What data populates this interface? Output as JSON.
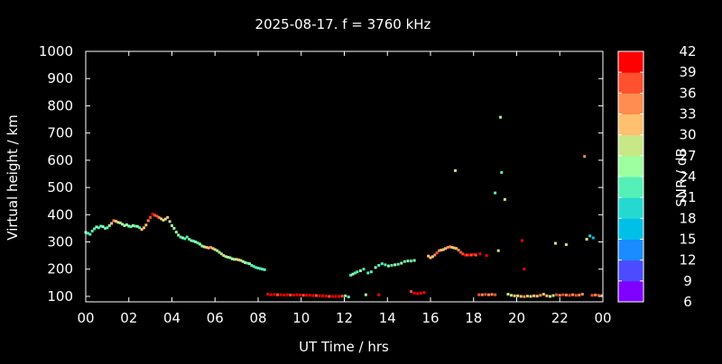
{
  "chart_data": {
    "type": "scatter",
    "title": "2025-08-17. f = 3760 kHz",
    "xlabel": "UT Time / hrs",
    "ylabel": "Virtual height / km",
    "xlim": [
      0,
      24
    ],
    "ylim": [
      80,
      1000
    ],
    "x_ticks": [
      "00",
      "02",
      "04",
      "06",
      "08",
      "10",
      "12",
      "14",
      "16",
      "18",
      "20",
      "22",
      "00"
    ],
    "y_ticks": [
      "100",
      "200",
      "300",
      "400",
      "500",
      "600",
      "700",
      "800",
      "900",
      "1000"
    ],
    "colorbar": {
      "label": "SNR / dB",
      "min": 6,
      "max": 42,
      "ticks": [
        "42",
        "39",
        "36",
        "33",
        "30",
        "27",
        "24",
        "21",
        "18",
        "15",
        "12",
        "9",
        "6"
      ],
      "colors": [
        "#8000ff",
        "#4b4bff",
        "#1a8cff",
        "#00c0e8",
        "#26d9d0",
        "#55f0b8",
        "#9dffa0",
        "#c8e888",
        "#ffc070",
        "#ff8c50",
        "#ff5030",
        "#ff0000"
      ]
    },
    "background": "#000000",
    "grid": false,
    "series": [
      {
        "points": [
          [
            0.0,
            335,
            24
          ],
          [
            0.1,
            332,
            23
          ],
          [
            0.2,
            328,
            22
          ],
          [
            0.3,
            340,
            23
          ],
          [
            0.4,
            348,
            22
          ],
          [
            0.5,
            355,
            24
          ],
          [
            0.6,
            352,
            23
          ],
          [
            0.7,
            358,
            22
          ],
          [
            0.8,
            356,
            24
          ],
          [
            0.9,
            350,
            23
          ],
          [
            1.0,
            352,
            22
          ],
          [
            1.1,
            360,
            24
          ],
          [
            1.2,
            368,
            30
          ],
          [
            1.3,
            378,
            33
          ],
          [
            1.4,
            376,
            30
          ],
          [
            1.5,
            372,
            27
          ],
          [
            1.6,
            370,
            28
          ],
          [
            1.7,
            365,
            25
          ],
          [
            1.8,
            360,
            24
          ],
          [
            1.9,
            363,
            26
          ],
          [
            2.0,
            358,
            24
          ],
          [
            2.1,
            356,
            23
          ],
          [
            2.2,
            360,
            24
          ],
          [
            2.3,
            358,
            23
          ],
          [
            2.4,
            357,
            24
          ],
          [
            2.5,
            352,
            23
          ],
          [
            2.6,
            346,
            30
          ],
          [
            2.7,
            352,
            31
          ],
          [
            2.8,
            362,
            30
          ],
          [
            2.9,
            378,
            33
          ],
          [
            3.0,
            390,
            36
          ],
          [
            3.1,
            402,
            39
          ],
          [
            3.2,
            398,
            38
          ],
          [
            3.3,
            395,
            36
          ],
          [
            3.4,
            390,
            33
          ],
          [
            3.5,
            385,
            30
          ],
          [
            3.6,
            380,
            27
          ],
          [
            3.7,
            384,
            28
          ],
          [
            3.8,
            390,
            30
          ],
          [
            3.9,
            375,
            27
          ],
          [
            4.0,
            360,
            26
          ],
          [
            4.1,
            350,
            24
          ],
          [
            4.2,
            336,
            25
          ],
          [
            4.3,
            325,
            24
          ],
          [
            4.4,
            318,
            23
          ],
          [
            4.5,
            315,
            24
          ],
          [
            4.6,
            312,
            23
          ],
          [
            4.7,
            318,
            22
          ],
          [
            4.8,
            310,
            23
          ],
          [
            4.9,
            305,
            24
          ],
          [
            5.0,
            303,
            23
          ],
          [
            5.1,
            300,
            24
          ],
          [
            5.2,
            296,
            23
          ],
          [
            5.3,
            292,
            24
          ],
          [
            5.4,
            285,
            25
          ],
          [
            5.5,
            282,
            27
          ],
          [
            5.6,
            280,
            30
          ],
          [
            5.7,
            278,
            31
          ],
          [
            5.8,
            280,
            33
          ],
          [
            5.9,
            276,
            30
          ],
          [
            6.0,
            272,
            27
          ],
          [
            6.1,
            268,
            24
          ],
          [
            6.2,
            262,
            25
          ],
          [
            6.3,
            256,
            27
          ],
          [
            6.4,
            250,
            28
          ],
          [
            6.5,
            246,
            27
          ],
          [
            6.6,
            244,
            25
          ],
          [
            6.7,
            242,
            24
          ],
          [
            6.8,
            238,
            24
          ],
          [
            6.9,
            236,
            25
          ],
          [
            7.0,
            236,
            27
          ],
          [
            7.1,
            234,
            30
          ],
          [
            7.2,
            232,
            28
          ],
          [
            7.3,
            228,
            27
          ],
          [
            7.4,
            224,
            24
          ],
          [
            7.5,
            222,
            23
          ],
          [
            7.6,
            220,
            24
          ],
          [
            7.7,
            214,
            23
          ],
          [
            7.8,
            210,
            22
          ],
          [
            7.9,
            206,
            23
          ],
          [
            8.0,
            204,
            22
          ],
          [
            8.1,
            202,
            21
          ],
          [
            8.2,
            200,
            22
          ],
          [
            8.3,
            198,
            21
          ],
          [
            8.45,
            108,
            40
          ],
          [
            8.6,
            106,
            39
          ],
          [
            8.75,
            107,
            40
          ],
          [
            8.9,
            106,
            38
          ],
          [
            9.05,
            106,
            39
          ],
          [
            9.2,
            105,
            40
          ],
          [
            9.35,
            106,
            39
          ],
          [
            9.5,
            105,
            38
          ],
          [
            9.65,
            105,
            39
          ],
          [
            9.8,
            106,
            40
          ],
          [
            9.95,
            105,
            39
          ],
          [
            10.1,
            104,
            38
          ],
          [
            10.25,
            104,
            39
          ],
          [
            10.4,
            104,
            40
          ],
          [
            10.55,
            103,
            39
          ],
          [
            10.7,
            103,
            38
          ],
          [
            10.85,
            102,
            39
          ],
          [
            11.0,
            102,
            40
          ],
          [
            11.15,
            101,
            39
          ],
          [
            11.3,
            100,
            38
          ],
          [
            11.45,
            100,
            39
          ],
          [
            11.6,
            100,
            40
          ],
          [
            11.75,
            100,
            39
          ],
          [
            11.9,
            101,
            38
          ],
          [
            12.05,
            102,
            24
          ],
          [
            12.2,
            98,
            23
          ],
          [
            12.3,
            178,
            23
          ],
          [
            12.4,
            182,
            24
          ],
          [
            12.5,
            186,
            22
          ],
          [
            12.6,
            190,
            23
          ],
          [
            12.75,
            194,
            24
          ],
          [
            12.9,
            200,
            23
          ],
          [
            13.1,
            186,
            22
          ],
          [
            13.25,
            190,
            23
          ],
          [
            13.45,
            206,
            24
          ],
          [
            13.6,
            214,
            23
          ],
          [
            13.75,
            220,
            22
          ],
          [
            13.9,
            216,
            23
          ],
          [
            14.05,
            212,
            24
          ],
          [
            14.2,
            214,
            23
          ],
          [
            14.35,
            216,
            24
          ],
          [
            14.5,
            218,
            23
          ],
          [
            14.65,
            222,
            24
          ],
          [
            14.8,
            228,
            23
          ],
          [
            14.95,
            230,
            24
          ],
          [
            15.1,
            230,
            23
          ],
          [
            15.25,
            232,
            24
          ],
          [
            15.1,
            118,
            38
          ],
          [
            15.25,
            112,
            40
          ],
          [
            15.4,
            110,
            39
          ],
          [
            15.55,
            112,
            40
          ],
          [
            15.7,
            114,
            39
          ],
          [
            15.9,
            248,
            31
          ],
          [
            16.0,
            242,
            30
          ],
          [
            16.1,
            246,
            31
          ],
          [
            16.2,
            252,
            33
          ],
          [
            16.3,
            260,
            36
          ],
          [
            16.4,
            268,
            34
          ],
          [
            16.5,
            270,
            31
          ],
          [
            16.6,
            272,
            30
          ],
          [
            16.7,
            276,
            31
          ],
          [
            16.8,
            280,
            33
          ],
          [
            16.9,
            282,
            34
          ],
          [
            17.0,
            280,
            31
          ],
          [
            17.1,
            278,
            30
          ],
          [
            17.2,
            276,
            31
          ],
          [
            17.3,
            270,
            33
          ],
          [
            17.4,
            262,
            36
          ],
          [
            17.5,
            256,
            38
          ],
          [
            17.6,
            252,
            39
          ],
          [
            17.7,
            252,
            38
          ],
          [
            17.8,
            252,
            39
          ],
          [
            17.9,
            252,
            38
          ],
          [
            18.0,
            254,
            39
          ],
          [
            18.1,
            252,
            38
          ],
          [
            18.3,
            256,
            40
          ],
          [
            18.6,
            250,
            41
          ],
          [
            17.15,
            562,
            28
          ],
          [
            19.0,
            480,
            21
          ],
          [
            19.15,
            268,
            28
          ],
          [
            19.25,
            758,
            24
          ],
          [
            19.3,
            555,
            22
          ],
          [
            19.45,
            456,
            27
          ],
          [
            20.25,
            305,
            40
          ],
          [
            20.35,
            200,
            40
          ],
          [
            21.8,
            295,
            29
          ],
          [
            22.3,
            290,
            28
          ],
          [
            23.15,
            614,
            34
          ],
          [
            23.25,
            310,
            27
          ],
          [
            23.4,
            322,
            19
          ],
          [
            23.55,
            315,
            17
          ],
          [
            18.25,
            106,
            36
          ],
          [
            18.4,
            106,
            35
          ],
          [
            18.55,
            107,
            36
          ],
          [
            18.7,
            106,
            34
          ],
          [
            18.85,
            107,
            35
          ],
          [
            19.0,
            106,
            36
          ],
          [
            19.6,
            108,
            28
          ],
          [
            19.75,
            104,
            27
          ],
          [
            19.9,
            102,
            30
          ],
          [
            20.05,
            102,
            28
          ],
          [
            20.2,
            100,
            31
          ],
          [
            20.35,
            99,
            33
          ],
          [
            20.5,
            101,
            31
          ],
          [
            20.65,
            100,
            28
          ],
          [
            20.8,
            102,
            30
          ],
          [
            20.95,
            101,
            31
          ],
          [
            21.1,
            104,
            33
          ],
          [
            21.25,
            108,
            31
          ],
          [
            21.4,
            102,
            30
          ],
          [
            21.55,
            100,
            28
          ],
          [
            21.7,
            103,
            27
          ],
          [
            21.85,
            106,
            36
          ],
          [
            22.0,
            104,
            35
          ],
          [
            22.15,
            106,
            36
          ],
          [
            22.3,
            105,
            34
          ],
          [
            22.45,
            104,
            36
          ],
          [
            22.6,
            106,
            35
          ],
          [
            22.75,
            104,
            36
          ],
          [
            22.9,
            105,
            34
          ],
          [
            23.05,
            108,
            33
          ],
          [
            23.5,
            104,
            36
          ],
          [
            23.65,
            105,
            35
          ],
          [
            23.8,
            104,
            36
          ],
          [
            23.95,
            103,
            35
          ],
          [
            13.0,
            106,
            26
          ],
          [
            13.6,
            106,
            40
          ]
        ]
      }
    ]
  }
}
